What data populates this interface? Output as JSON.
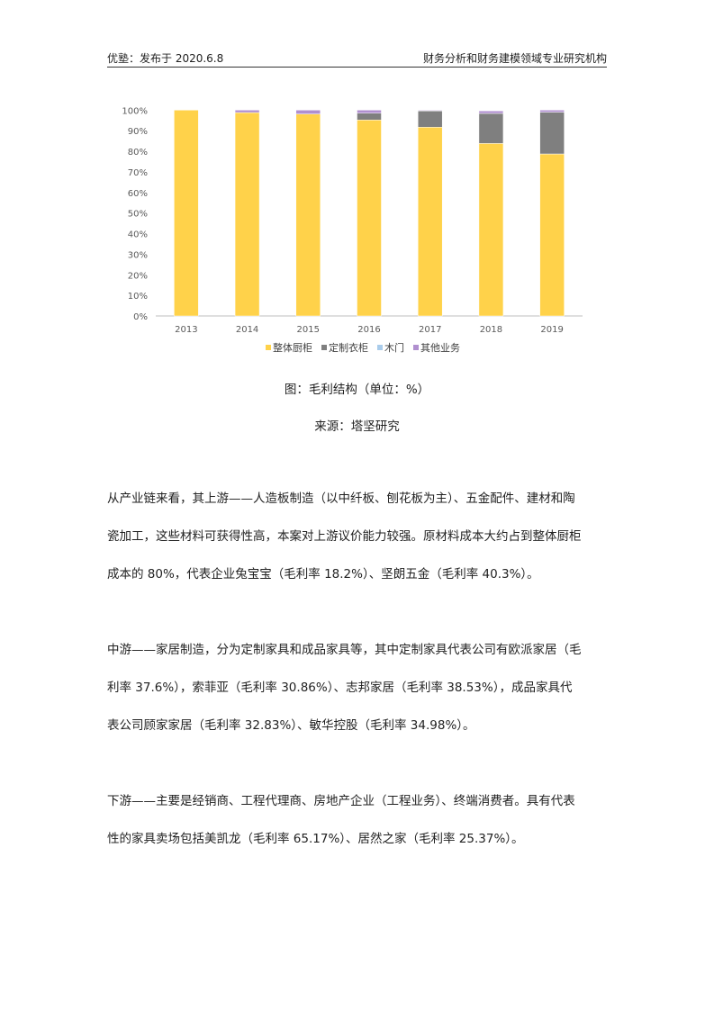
{
  "header": {
    "left": "优塾：发布于 2020.6.8",
    "right": "财务分析和财务建模领域专业研究机构"
  },
  "chart_data": {
    "type": "bar",
    "stacked": true,
    "categories": [
      "2013",
      "2014",
      "2015",
      "2016",
      "2017",
      "2018",
      "2019"
    ],
    "ylim": [
      0,
      100
    ],
    "yticks": [
      "0%",
      "10%",
      "20%",
      "30%",
      "40%",
      "50%",
      "60%",
      "70%",
      "80%",
      "90%",
      "100%"
    ],
    "grid": false,
    "legend": "bottom",
    "series": [
      {
        "name": "整体厨柜",
        "color": "#FFD24A",
        "values": [
          100,
          98.8,
          98.1,
          95.2,
          91.7,
          83.8,
          78.7
        ]
      },
      {
        "name": "定制衣柜",
        "color": "#7F7F7F",
        "values": [
          0,
          0,
          0,
          3.3,
          7.9,
          14.6,
          20.3
        ]
      },
      {
        "name": "木门",
        "color": "#A9CCEB",
        "values": [
          0,
          0,
          0,
          0,
          0.1,
          0,
          0
        ]
      },
      {
        "name": "其他业务",
        "color": "#B08FCF",
        "values": [
          0,
          1.2,
          1.9,
          1.5,
          0.3,
          1.2,
          1.0
        ]
      }
    ]
  },
  "caption": "图：毛利结构（单位：%）",
  "source": "来源：塔坚研究",
  "paragraphs": [
    [
      "从产业链来看，其上游——人造板制造（以中纤板、刨花板为主）、五金配件、建材和陶",
      "瓷加工，这些材料可获得性高，本案对上游议价能力较强。原材料成本大约占到整体厨柜",
      "成本的 80%，代表企业兔宝宝（毛利率 18.2%）、坚朗五金（毛利率 40.3%）。"
    ],
    [
      "中游——家居制造，分为定制家具和成品家具等，其中定制家具代表公司有欧派家居（毛",
      "利率 37.6%），索菲亚（毛利率 30.86%）、志邦家居（毛利率 38.53%），成品家具代",
      "表公司顾家家居（毛利率 32.83%）、敏华控股（毛利率 34.98%）。"
    ],
    [
      "下游——主要是经销商、工程代理商、房地产企业（工程业务）、终端消费者。具有代表",
      "性的家具卖场包括美凯龙（毛利率 65.17%）、居然之家（毛利率 25.37%）。"
    ]
  ]
}
